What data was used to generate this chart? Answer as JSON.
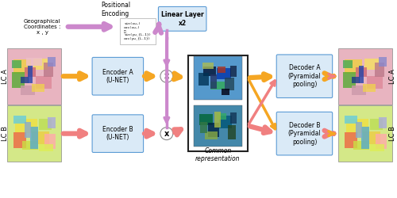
{
  "bg_color": "#ffffff",
  "box_color_blue": "#daeaf7",
  "box_color_blue_border": "#5b9bd5",
  "arrow_color_orange": "#f5a623",
  "arrow_color_red": "#f08080",
  "arrow_color_pink": "#cc88cc",
  "enc_a_label": "Encoder A\n(U-NET)",
  "enc_b_label": "Encoder B\n(U-NET)",
  "dec_a_label": "Decoder A\n(Pyramidal\npooling)",
  "dec_b_label": "Decoder B\n(Pyramidal\npooling)",
  "linear_label": "Linear Layer\nx2",
  "common_label": "Common\nrepresentation",
  "geo_label": "Geographical\nCoordinates :\nx , y",
  "pos_label": "Positional\nEncoding",
  "lca_label": "LC A",
  "lcb_label": "LC B",
  "multiply_symbol": "x"
}
